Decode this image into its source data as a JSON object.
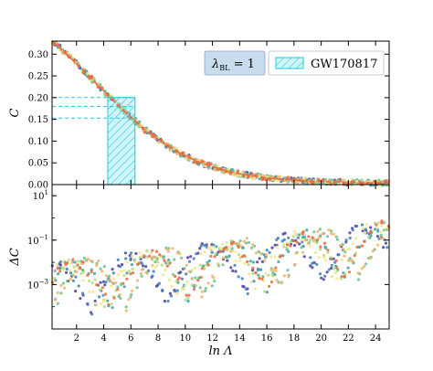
{
  "chart_data": [
    {
      "panel": "top",
      "type": "scatter",
      "ylabel": "C",
      "xlim": [
        0.2,
        25
      ],
      "ylim": [
        0,
        0.33
      ],
      "xticks": [
        "2",
        "4",
        "6",
        "8",
        "10",
        "12",
        "14",
        "16",
        "18",
        "20",
        "22",
        "24"
      ],
      "yticks": [
        "0.00",
        "0.05",
        "0.10",
        "0.15",
        "0.20",
        "0.25",
        "0.30"
      ],
      "ytick_values": [
        0,
        0.05,
        0.1,
        0.15,
        0.2,
        0.25,
        0.3
      ],
      "xtick_values": [
        2,
        4,
        6,
        8,
        10,
        12,
        14,
        16,
        18,
        20,
        22,
        24
      ],
      "fit_curve": {
        "x": [
          0.2,
          1,
          2,
          3,
          4,
          5,
          6,
          7,
          8,
          9,
          10,
          11,
          12,
          13,
          14,
          16,
          18,
          20,
          22,
          24,
          25
        ],
        "y": [
          0.33,
          0.308,
          0.278,
          0.247,
          0.215,
          0.184,
          0.155,
          0.127,
          0.104,
          0.083,
          0.066,
          0.052,
          0.041,
          0.032,
          0.025,
          0.015,
          0.01,
          0.007,
          0.005,
          0.004,
          0.004
        ]
      },
      "band": {
        "label": "GW170817",
        "x_range": [
          4.3,
          6.3
        ],
        "c_levels": [
          0.2,
          0.18,
          0.153
        ]
      },
      "legend": {
        "text_label": "λ",
        "text_sub": "BL",
        "text_value": " = 1",
        "band_label": "GW170817",
        "position": "top-right"
      }
    },
    {
      "panel": "bottom",
      "type": "scatter",
      "ylabel": "ΔC",
      "xlabel": "ln Λ",
      "yscale": "log",
      "xlim": [
        0.2,
        25
      ],
      "ylim_exp": [
        -5,
        1.5
      ],
      "yticks": [
        {
          "base": "10",
          "exp": "1",
          "value": 1
        },
        {
          "base": "10",
          "exp": "−1",
          "value": -1
        },
        {
          "base": "10",
          "exp": "−3",
          "value": -3
        }
      ],
      "xticks": [
        "2",
        "4",
        "6",
        "8",
        "10",
        "12",
        "14",
        "16",
        "18",
        "20",
        "22",
        "24"
      ],
      "xtick_values": [
        2,
        4,
        6,
        8,
        10,
        12,
        14,
        16,
        18,
        20,
        22,
        24
      ]
    }
  ],
  "series_colors": [
    "#4b3fa0",
    "#3b7fb6",
    "#3aa3a6",
    "#6dbf8c",
    "#b7d97c",
    "#f1e58a",
    "#f7b267",
    "#e8683f"
  ]
}
